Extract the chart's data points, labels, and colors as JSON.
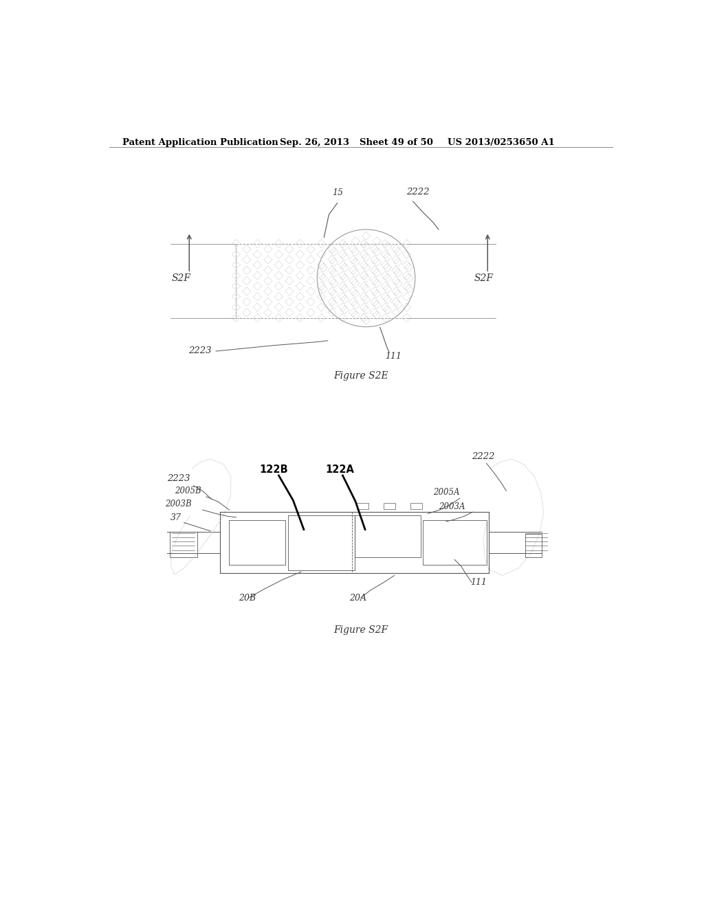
{
  "page_bg": "#ffffff",
  "header_text": "Patent Application Publication",
  "header_date": "Sep. 26, 2013",
  "header_sheet": "Sheet 49 of 50",
  "header_patent": "US 2013/0253650 A1",
  "fig1_caption": "Figure S2E",
  "fig2_caption": "Figure S2F",
  "text_color": "#333333",
  "drawing_color": "#999999",
  "dark_color": "#555555",
  "black_color": "#000000"
}
